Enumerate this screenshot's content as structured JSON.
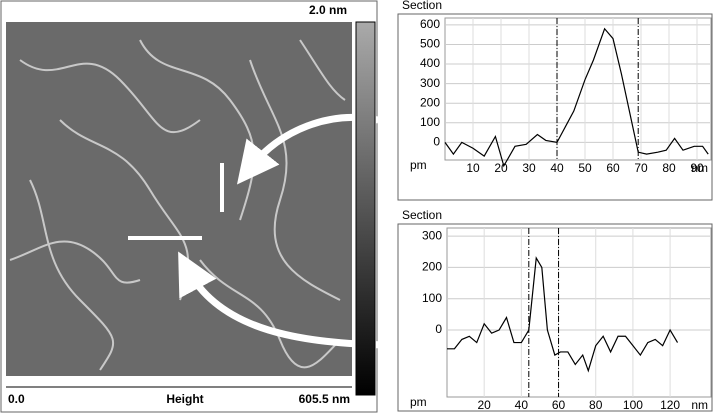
{
  "image": {
    "scale_max": "2.0 nm",
    "scale_min": "0.0",
    "label": "Height",
    "width": "605.5 nm"
  },
  "chart_data": [
    {
      "type": "line",
      "title": "Section",
      "ylabel": "pm",
      "xlabel": "nm",
      "x": [
        0,
        3,
        6,
        10,
        14,
        18,
        21,
        25,
        29,
        33,
        36,
        40,
        43,
        46,
        50,
        53,
        57,
        60,
        63,
        66,
        69,
        72,
        76,
        79,
        82,
        85,
        89,
        92,
        94
      ],
      "series": [
        {
          "color": "#000000",
          "values": [
            0,
            -60,
            0,
            -30,
            -70,
            30,
            -120,
            -20,
            -10,
            40,
            10,
            0,
            80,
            160,
            320,
            420,
            580,
            530,
            350,
            150,
            -50,
            -60,
            -50,
            -40,
            20,
            -40,
            -20,
            -20,
            -60
          ]
        }
      ],
      "cursors": [
        40,
        69
      ],
      "xlim": [
        0,
        95
      ],
      "xticks": [
        10,
        20,
        30,
        40,
        50,
        60,
        70,
        80,
        90
      ],
      "ylim": [
        -90,
        635
      ],
      "yticks": [
        600,
        500,
        400,
        300,
        200,
        100,
        0
      ],
      "grid": true
    },
    {
      "type": "line",
      "title": "Section",
      "ylabel": "pm",
      "xlabel": "nm",
      "x": [
        0,
        4,
        8,
        12,
        16,
        20,
        24,
        28,
        32,
        36,
        40,
        44,
        48,
        51,
        54,
        58,
        61,
        65,
        69,
        73,
        76,
        80,
        84,
        88,
        92,
        96,
        100,
        104,
        108,
        112,
        116,
        120,
        124
      ],
      "series": [
        {
          "color": "#000000",
          "values": [
            -60,
            -60,
            -30,
            -20,
            -40,
            20,
            -10,
            0,
            40,
            -40,
            -40,
            0,
            230,
            200,
            0,
            -80,
            -70,
            -70,
            -110,
            -80,
            -130,
            -50,
            -20,
            -70,
            -20,
            -20,
            -50,
            -80,
            -40,
            -30,
            -50,
            0,
            -40
          ]
        }
      ],
      "cursors": [
        44,
        60
      ],
      "xlim": [
        0,
        142
      ],
      "xticks": [
        20,
        40,
        60,
        80,
        100,
        120
      ],
      "ylim": [
        -214,
        326
      ],
      "yticks": [
        300,
        200,
        100,
        0
      ],
      "grid": true
    }
  ]
}
